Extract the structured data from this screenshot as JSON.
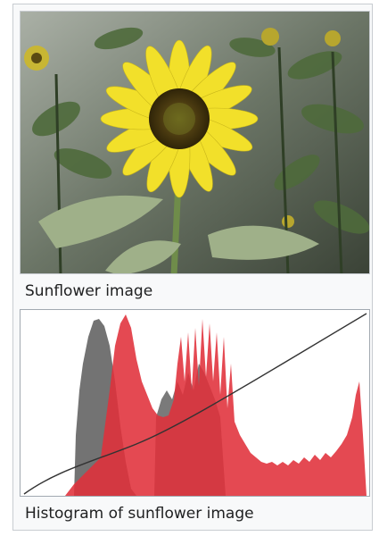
{
  "figure_1": {
    "caption": "Sunflower image",
    "image_content": "sunflower photo"
  },
  "figure_2": {
    "caption": "Histogram of sunflower image",
    "colors": {
      "gray_histogram": "#6b6b6b",
      "red_histogram": "#e0303a",
      "curve": "#333333"
    }
  }
}
